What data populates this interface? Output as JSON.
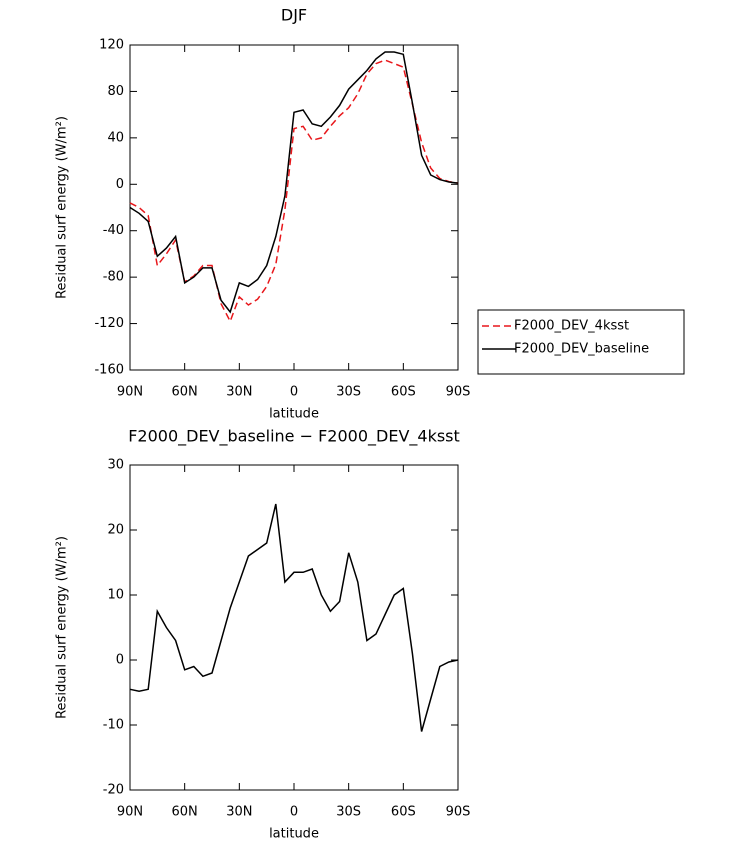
{
  "chart_data": [
    {
      "type": "line",
      "title": "DJF",
      "x_label": "latitude",
      "y_label": "Residual surf energy (W/m²)",
      "x": [
        90,
        85,
        80,
        75,
        70,
        65,
        60,
        55,
        50,
        45,
        40,
        35,
        30,
        25,
        20,
        15,
        10,
        5,
        0,
        -5,
        -10,
        -15,
        -20,
        -25,
        -30,
        -35,
        -40,
        -45,
        -50,
        -55,
        -60,
        -65,
        -70,
        -75,
        -80,
        -85,
        -90
      ],
      "series": [
        {
          "name": "F2000_DEV_4ksst",
          "color": "#e8171b",
          "line_style": "dashed",
          "values": [
            -16,
            -20,
            -27,
            -70,
            -60,
            -48,
            -84,
            -79,
            -70,
            -70,
            -103,
            -118,
            -97,
            -104,
            -99,
            -88,
            -69,
            -22,
            48,
            50,
            38,
            40,
            50,
            59,
            66,
            78,
            95,
            104,
            107,
            104,
            101,
            69,
            36,
            14,
            5,
            2.3,
            1
          ]
        },
        {
          "name": "F2000_DEV_baseline",
          "color": "#000000",
          "line_style": "solid",
          "values": [
            -20,
            -25,
            -32,
            -62,
            -55,
            -45,
            -85,
            -80,
            -72,
            -72,
            -100,
            -110,
            -85,
            -88,
            -82,
            -70,
            -45,
            -10,
            62,
            64,
            52,
            50,
            58,
            68,
            82,
            90,
            98,
            108,
            114,
            114,
            112,
            70,
            25,
            8,
            4,
            2,
            1
          ]
        }
      ],
      "xlim": [
        90,
        -90
      ],
      "xticks": [
        {
          "value": 90,
          "label": "90N"
        },
        {
          "value": 60,
          "label": "60N"
        },
        {
          "value": 30,
          "label": "30N"
        },
        0,
        {
          "value": -30,
          "label": "30S"
        },
        {
          "value": -60,
          "label": "60S"
        },
        {
          "value": -90,
          "label": "90S"
        }
      ],
      "ylim": [
        -160,
        120
      ],
      "yticks": [
        -160,
        -120,
        -80,
        -40,
        0,
        40,
        80,
        120
      ],
      "legend": "right"
    },
    {
      "type": "line",
      "title": "F2000_DEV_baseline − F2000_DEV_4ksst",
      "x_label": "latitude",
      "y_label": "Residual surf energy (W/m²)",
      "x": [
        90,
        85,
        80,
        75,
        70,
        65,
        60,
        55,
        50,
        45,
        40,
        35,
        30,
        25,
        20,
        15,
        10,
        5,
        0,
        -5,
        -10,
        -15,
        -20,
        -25,
        -30,
        -35,
        -40,
        -45,
        -50,
        -55,
        -60,
        -65,
        -70,
        -75,
        -80,
        -85,
        -90
      ],
      "values": [
        -4.5,
        -4.8,
        -4.5,
        7.5,
        5,
        3,
        -1.5,
        -1,
        -2.5,
        -2,
        3,
        8,
        12,
        16,
        17,
        18,
        24,
        12,
        13.5,
        13.5,
        14,
        10,
        7.5,
        9,
        16.5,
        12,
        3,
        4,
        7,
        10,
        11,
        1,
        -11,
        -6,
        -1,
        -0.3,
        0
      ],
      "color": "#000000",
      "xlim": [
        90,
        -90
      ],
      "xticks": [
        {
          "value": 90,
          "label": "90N"
        },
        {
          "value": 60,
          "label": "60N"
        },
        {
          "value": 30,
          "label": "30N"
        },
        0,
        {
          "value": -30,
          "label": "30S"
        },
        {
          "value": -60,
          "label": "60S"
        },
        {
          "value": -90,
          "label": "90S"
        }
      ],
      "ylim": [
        -20,
        30
      ],
      "yticks": [
        -20,
        -10,
        0,
        10,
        20,
        30
      ]
    }
  ]
}
